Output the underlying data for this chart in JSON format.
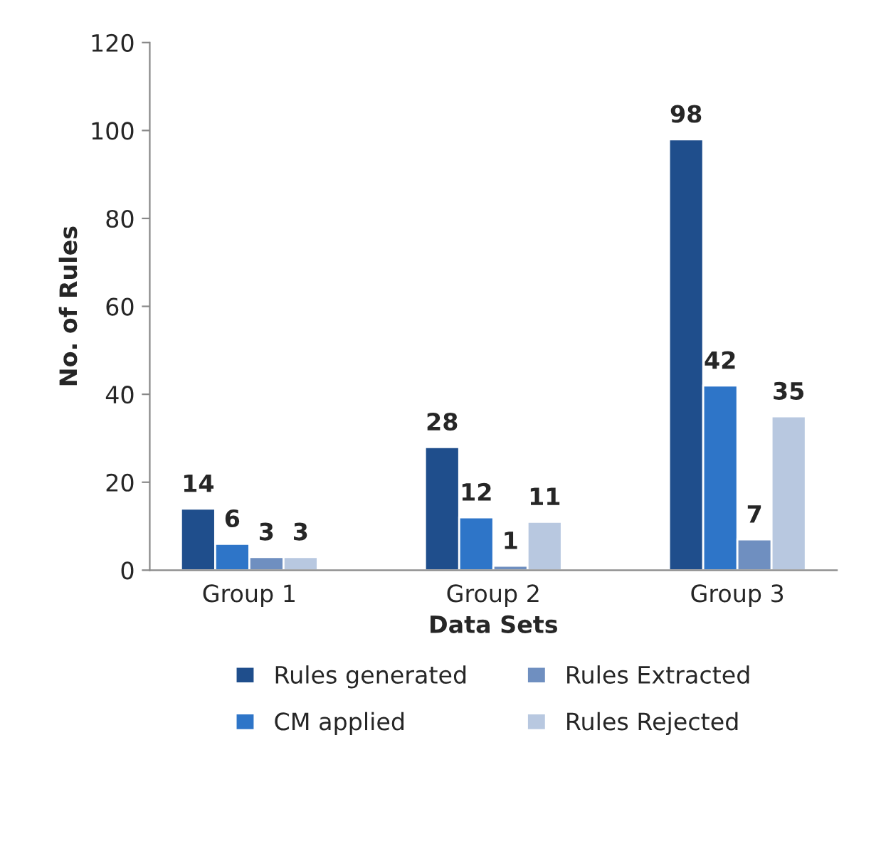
{
  "chart_data": {
    "type": "bar",
    "xlabel": "Data Sets",
    "ylabel": "No. of Rules",
    "categories": [
      "Group 1",
      "Group 2",
      "Group 3"
    ],
    "series": [
      {
        "name": "Rules generated",
        "color": "#1f4e8c",
        "values": [
          14,
          28,
          98
        ]
      },
      {
        "name": "CM applied",
        "color": "#2e75c8",
        "values": [
          6,
          12,
          42
        ]
      },
      {
        "name": "Rules Extracted",
        "color": "#6f8fc0",
        "values": [
          3,
          1,
          7
        ]
      },
      {
        "name": "Rules Rejected",
        "color": "#b8c8e0",
        "values": [
          3,
          11,
          35
        ]
      }
    ],
    "ylim": [
      0,
      120
    ],
    "yticks": [
      0,
      20,
      40,
      60,
      80,
      100,
      120
    ],
    "data_labels": true,
    "grid": false,
    "legend": "bottom"
  }
}
